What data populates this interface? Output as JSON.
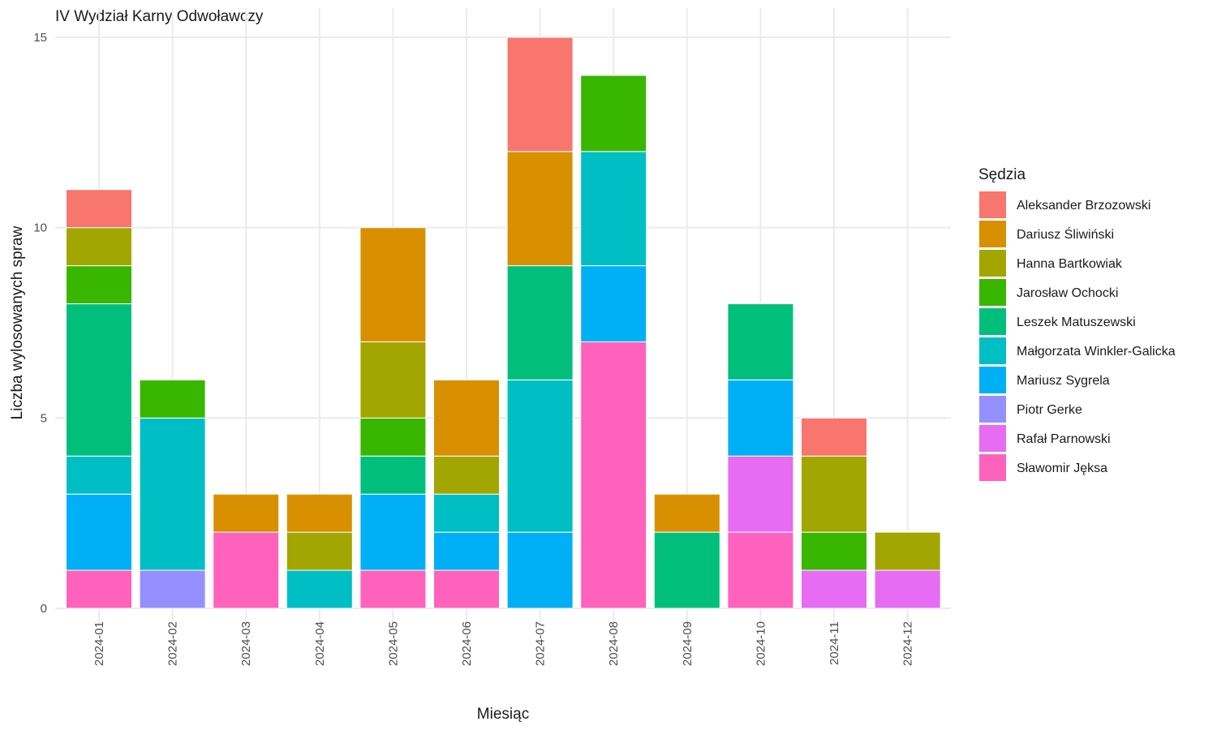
{
  "chart_data": {
    "type": "bar",
    "stacked": true,
    "title": "IV Wydział Karny Odwoławczy",
    "xlabel": "Miesiąc",
    "ylabel": "Liczba wylosowanych spraw",
    "ylim": [
      0,
      15
    ],
    "yticks": [
      0,
      5,
      10,
      15
    ],
    "grid": true,
    "legend": {
      "title": "Sędzia",
      "position": "right"
    },
    "categories": [
      "2024-01",
      "2024-02",
      "2024-03",
      "2024-04",
      "2024-05",
      "2024-06",
      "2024-07",
      "2024-08",
      "2024-09",
      "2024-10",
      "2024-11",
      "2024-12"
    ],
    "series": [
      {
        "name": "Aleksander Brzozowski",
        "color": "#F8766D",
        "values": [
          1,
          0,
          0,
          0,
          0,
          0,
          3,
          0,
          0,
          0,
          1,
          0
        ]
      },
      {
        "name": "Dariusz Śliwiński",
        "color": "#D89000",
        "values": [
          0,
          0,
          1,
          1,
          3,
          2,
          3,
          0,
          1,
          0,
          0,
          0
        ]
      },
      {
        "name": "Hanna Bartkowiak",
        "color": "#A3A500",
        "values": [
          1,
          0,
          0,
          1,
          2,
          1,
          0,
          0,
          0,
          0,
          2,
          1
        ]
      },
      {
        "name": "Jarosław Ochocki",
        "color": "#39B600",
        "values": [
          1,
          1,
          0,
          0,
          1,
          0,
          0,
          2,
          0,
          0,
          1,
          0
        ]
      },
      {
        "name": "Leszek Matuszewski",
        "color": "#00BF7D",
        "values": [
          4,
          0,
          0,
          0,
          1,
          0,
          3,
          0,
          2,
          2,
          0,
          0
        ]
      },
      {
        "name": "Małgorzata Winkler-Galicka",
        "color": "#00BFC4",
        "values": [
          1,
          4,
          0,
          1,
          0,
          1,
          4,
          3,
          0,
          0,
          0,
          0
        ]
      },
      {
        "name": "Mariusz Sygrela",
        "color": "#00B0F6",
        "values": [
          2,
          0,
          0,
          0,
          2,
          1,
          2,
          2,
          0,
          2,
          0,
          0
        ]
      },
      {
        "name": "Piotr Gerke",
        "color": "#9590FF",
        "values": [
          0,
          1,
          0,
          0,
          0,
          0,
          0,
          0,
          0,
          0,
          0,
          0
        ]
      },
      {
        "name": "Rafał Parnowski",
        "color": "#E76BF3",
        "values": [
          0,
          0,
          0,
          0,
          0,
          0,
          0,
          0,
          0,
          2,
          1,
          1
        ]
      },
      {
        "name": "Sławomir Jęksa",
        "color": "#FF62BC",
        "values": [
          1,
          0,
          2,
          0,
          1,
          1,
          0,
          7,
          0,
          2,
          0,
          0
        ]
      }
    ]
  }
}
